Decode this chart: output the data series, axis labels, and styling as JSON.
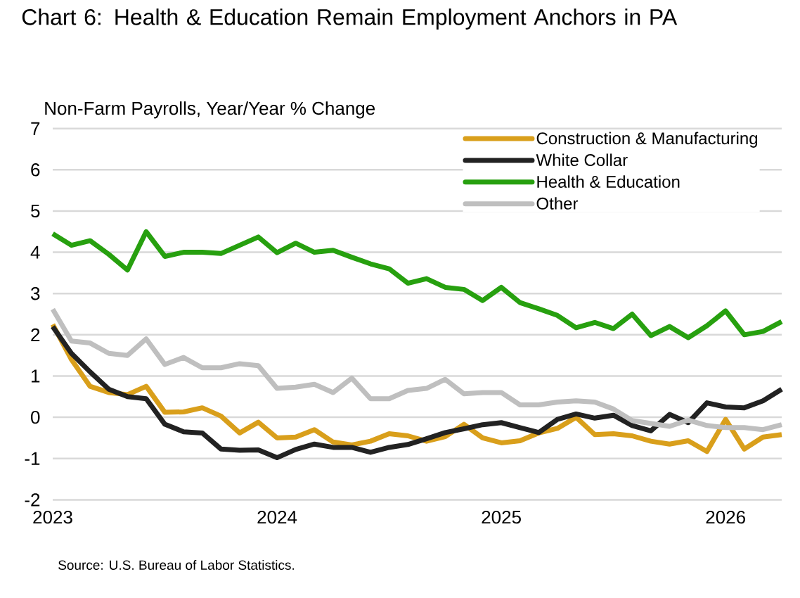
{
  "chart_data": {
    "type": "line",
    "title": "Chart 6: Health & Education Remain Employment Anchors in PA",
    "ylabel": "Non-Farm Payrolls, Year/Year % Change",
    "annotations": [
      "Source: U.S. Bureau of Labor Statistics."
    ],
    "x": [
      "2023-01",
      "2023-02",
      "2023-03",
      "2023-04",
      "2023-05",
      "2023-06",
      "2023-07",
      "2023-08",
      "2023-09",
      "2023-10",
      "2023-11",
      "2023-12",
      "2024-01",
      "2024-02",
      "2024-03",
      "2024-04",
      "2024-05",
      "2024-06",
      "2024-07",
      "2024-08",
      "2024-09",
      "2024-10",
      "2024-11",
      "2024-12",
      "2025-01",
      "2025-02",
      "2025-03",
      "2025-04",
      "2025-05",
      "2025-06",
      "2025-07",
      "2025-08",
      "2025-09",
      "2025-10",
      "2025-11",
      "2025-12",
      "2026-01",
      "2026-02",
      "2026-03",
      "2026-04"
    ],
    "series": [
      {
        "name": "Construction & Manufacturing",
        "color": "#d99f1b",
        "values": [
          2.25,
          1.4,
          0.75,
          0.6,
          0.55,
          0.75,
          0.12,
          0.13,
          0.23,
          0.03,
          -0.38,
          -0.12,
          -0.5,
          -0.48,
          -0.3,
          -0.6,
          -0.67,
          -0.58,
          -0.4,
          -0.45,
          -0.58,
          -0.47,
          -0.17,
          -0.5,
          -0.62,
          -0.57,
          -0.38,
          -0.27,
          0.0,
          -0.42,
          -0.4,
          -0.45,
          -0.58,
          -0.65,
          -0.57,
          -0.83,
          -0.05,
          -0.77,
          -0.48,
          -0.42
        ]
      },
      {
        "name": "White Collar",
        "color": "#222222",
        "values": [
          2.2,
          1.55,
          1.1,
          0.68,
          0.5,
          0.45,
          -0.17,
          -0.35,
          -0.38,
          -0.77,
          -0.8,
          -0.79,
          -0.98,
          -0.78,
          -0.65,
          -0.73,
          -0.73,
          -0.85,
          -0.73,
          -0.66,
          -0.52,
          -0.37,
          -0.28,
          -0.18,
          -0.13,
          -0.25,
          -0.37,
          -0.05,
          0.08,
          -0.02,
          0.05,
          -0.2,
          -0.33,
          0.07,
          -0.13,
          0.35,
          0.25,
          0.23,
          0.4,
          0.68
        ]
      },
      {
        "name": "Health & Education",
        "color": "#27a00f",
        "values": [
          4.45,
          4.17,
          4.28,
          3.95,
          3.57,
          4.5,
          3.9,
          4.0,
          4.0,
          3.97,
          4.17,
          4.37,
          3.99,
          4.22,
          4.0,
          4.05,
          3.88,
          3.72,
          3.6,
          3.25,
          3.36,
          3.15,
          3.1,
          2.83,
          3.15,
          2.78,
          2.63,
          2.47,
          2.17,
          2.3,
          2.15,
          2.5,
          1.98,
          2.2,
          1.93,
          2.22,
          2.58,
          2.0,
          2.08,
          2.32
        ]
      },
      {
        "name": "Other",
        "color": "#bfbfbf",
        "values": [
          2.62,
          1.85,
          1.8,
          1.55,
          1.5,
          1.9,
          1.28,
          1.45,
          1.2,
          1.2,
          1.3,
          1.25,
          0.7,
          0.73,
          0.8,
          0.6,
          0.95,
          0.45,
          0.45,
          0.65,
          0.7,
          0.92,
          0.57,
          0.6,
          0.6,
          0.3,
          0.3,
          0.37,
          0.4,
          0.37,
          0.2,
          -0.08,
          -0.15,
          -0.22,
          -0.07,
          -0.2,
          -0.25,
          -0.25,
          -0.3,
          -0.18
        ]
      }
    ],
    "xlim": [
      "2023-01",
      "2026-04"
    ],
    "xticks": [
      {
        "value": "2023-01",
        "label": "2023"
      },
      {
        "value": "2024-01",
        "label": "2024"
      },
      {
        "value": "2025-01",
        "label": "2025"
      },
      {
        "value": "2026-01",
        "label": "2026"
      }
    ],
    "ylim": [
      -2,
      7
    ],
    "yticks": [
      -2,
      -1,
      0,
      1,
      2,
      3,
      4,
      5,
      6,
      7
    ],
    "grid": "y",
    "legend": "top right"
  }
}
